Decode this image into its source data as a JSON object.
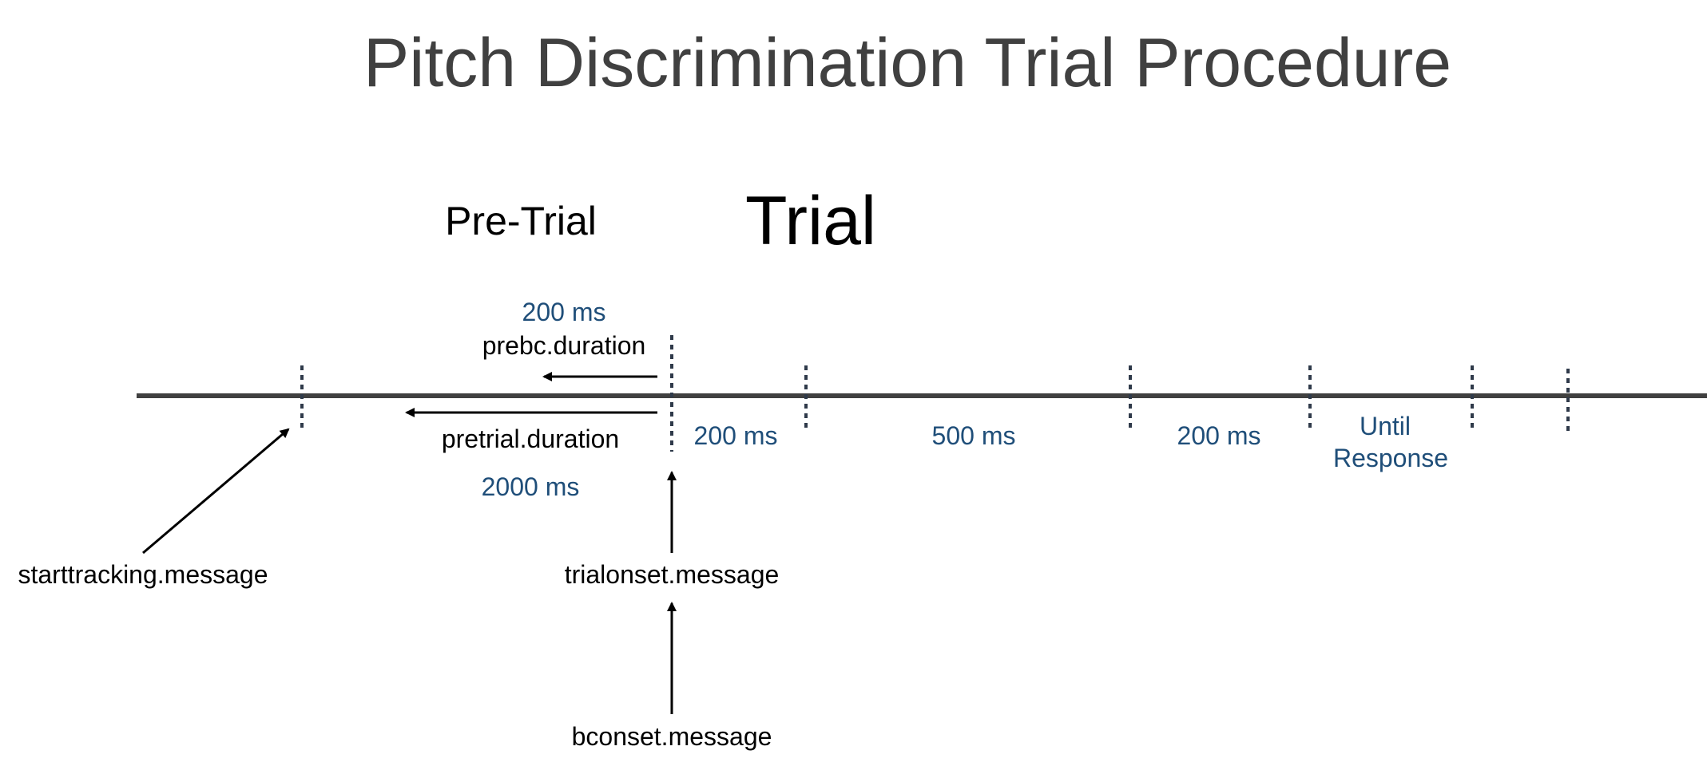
{
  "title": "Pitch Discrimination Trial Procedure",
  "phases": {
    "pre_trial": "Pre-Trial",
    "trial": "Trial"
  },
  "durations": {
    "prebc": "200 ms",
    "pretrial": "2000 ms",
    "stage1": "200 ms",
    "stage2": "500 ms",
    "stage3": "200 ms",
    "stage4_line1": "Until",
    "stage4_line2": "Response"
  },
  "labels": {
    "prebc_duration": "prebc.duration",
    "pretrial_duration": "pretrial.duration",
    "starttracking_message": "starttracking.message",
    "trialonset_message": "trialonset.message",
    "bconset_message": "bconset.message"
  },
  "colors": {
    "title": "#404040",
    "duration_text": "#1f4e79",
    "timeline": "#404040",
    "marker": "#2f3a4a"
  }
}
